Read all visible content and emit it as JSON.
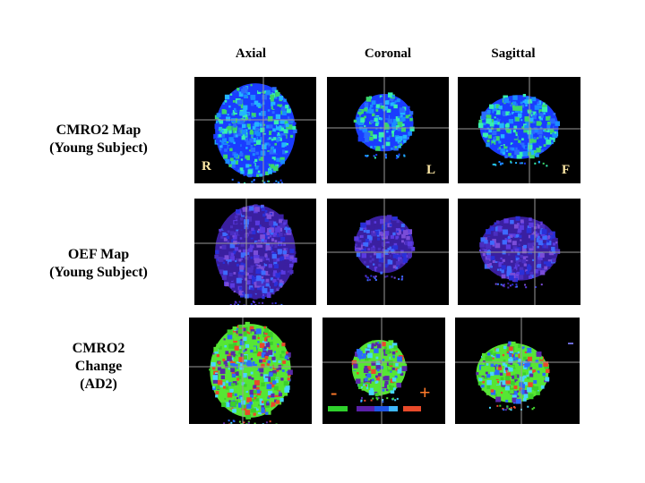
{
  "column_headers": [
    "Axial",
    "Coronal",
    "Sagittal"
  ],
  "row_labels": [
    [
      "CMRO2 Map",
      "(Young Subject)"
    ],
    [
      "OEF Map",
      "(Young Subject)"
    ],
    [
      "CMRO2 Change",
      "(AD2)"
    ]
  ],
  "orientation_labels": {
    "right": "R",
    "left": "L",
    "front": "F"
  },
  "colorbar": {
    "minus": "-",
    "plus": "+",
    "colors": [
      "#2fd12c",
      "#5a20a8",
      "#1f55e6",
      "#3fb8ff",
      "#e84a2a"
    ]
  },
  "palette": {
    "cmro2": [
      "#1a3cff",
      "#2a6bff",
      "#23b5ff",
      "#36f0b0",
      "#3ad66b",
      "#1a8cff"
    ],
    "oef": [
      "#3a1fa0",
      "#4a2ec0",
      "#2a2fd8",
      "#5a3ae0",
      "#3d6bff",
      "#7a4dd8"
    ],
    "change": [
      "#56e634",
      "#3ccf2a",
      "#5a2aa8",
      "#2a6bff",
      "#47d6ff",
      "#e84a2a"
    ]
  }
}
